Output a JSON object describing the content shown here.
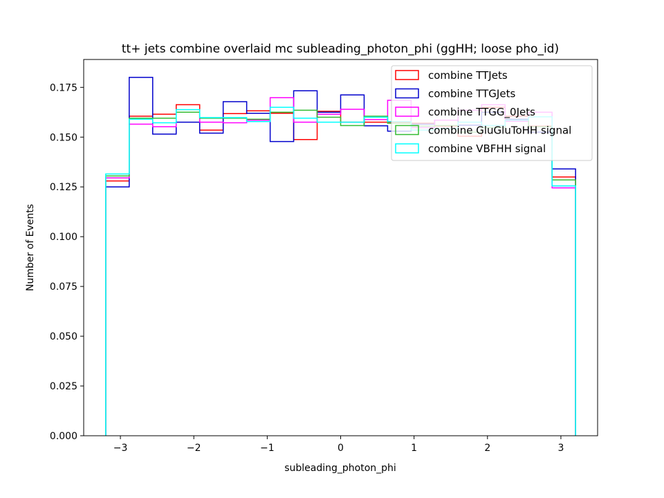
{
  "chart_data": {
    "type": "step-histogram",
    "title": "tt+ jets combine overlaid mc subleading_photon_phi (ggHH; loose pho_id)",
    "xlabel": "subleading_photon_phi",
    "ylabel": "Number of Events",
    "xlim": [
      -3.5,
      3.5
    ],
    "ylim": [
      0.0,
      0.189
    ],
    "xticks": [
      -3,
      -2,
      -1,
      0,
      1,
      2,
      3
    ],
    "xtick_labels": [
      "−3",
      "−2",
      "−1",
      "0",
      "1",
      "2",
      "3"
    ],
    "yticks": [
      0.0,
      0.025,
      0.05,
      0.075,
      0.1,
      0.125,
      0.15,
      0.175
    ],
    "ytick_labels": [
      "0.000",
      "0.025",
      "0.050",
      "0.075",
      "0.100",
      "0.125",
      "0.150",
      "0.175"
    ],
    "bin_edges": [
      -3.2,
      -2.88,
      -2.56,
      -2.24,
      -1.92,
      -1.6,
      -1.28,
      -0.96,
      -0.64,
      -0.32,
      0.0,
      0.32,
      0.64,
      0.96,
      1.28,
      1.6,
      1.92,
      2.24,
      2.56,
      2.88,
      3.2
    ],
    "legend_position": "upper right",
    "series": [
      {
        "name": "combine TTJets",
        "color": "#ff0000",
        "values": [
          0.128,
          0.1605,
          0.1615,
          0.1663,
          0.1535,
          0.1618,
          0.1632,
          0.162,
          0.1488,
          0.163,
          0.1575,
          0.1575,
          0.1575,
          0.157,
          0.1555,
          0.1505,
          0.165,
          0.1605,
          0.1555,
          0.13
        ]
      },
      {
        "name": "combine TTGJets",
        "color": "#0000cc",
        "values": [
          0.125,
          0.18,
          0.1515,
          0.1575,
          0.152,
          0.1678,
          0.162,
          0.1478,
          0.1733,
          0.1625,
          0.1712,
          0.1557,
          0.153,
          0.1565,
          0.1585,
          0.156,
          0.1625,
          0.159,
          0.1525,
          0.134
        ]
      },
      {
        "name": "combine TTGG_0Jets",
        "color": "#ff00ff",
        "values": [
          0.1295,
          0.1565,
          0.1552,
          0.1625,
          0.1575,
          0.1572,
          0.1585,
          0.1698,
          0.1575,
          0.1615,
          0.164,
          0.1588,
          0.1685,
          0.1548,
          0.1585,
          0.1635,
          0.1663,
          0.158,
          0.1625,
          0.1245
        ]
      },
      {
        "name": "combine GluGluToHH signal",
        "color": "#33bb33",
        "values": [
          0.1305,
          0.1595,
          0.1595,
          0.1625,
          0.1595,
          0.1595,
          0.159,
          0.1625,
          0.1635,
          0.16,
          0.1558,
          0.1605,
          0.157,
          0.1555,
          0.1558,
          0.1525,
          0.1548,
          0.1585,
          0.1552,
          0.1285
        ]
      },
      {
        "name": "combine VBFHH signal",
        "color": "#00ffff",
        "values": [
          0.1315,
          0.159,
          0.1572,
          0.1638,
          0.1598,
          0.1598,
          0.1578,
          0.165,
          0.1595,
          0.1575,
          0.1575,
          0.16,
          0.1578,
          0.1535,
          0.1542,
          0.1575,
          0.1558,
          0.1585,
          0.1602,
          0.1255
        ]
      }
    ]
  }
}
